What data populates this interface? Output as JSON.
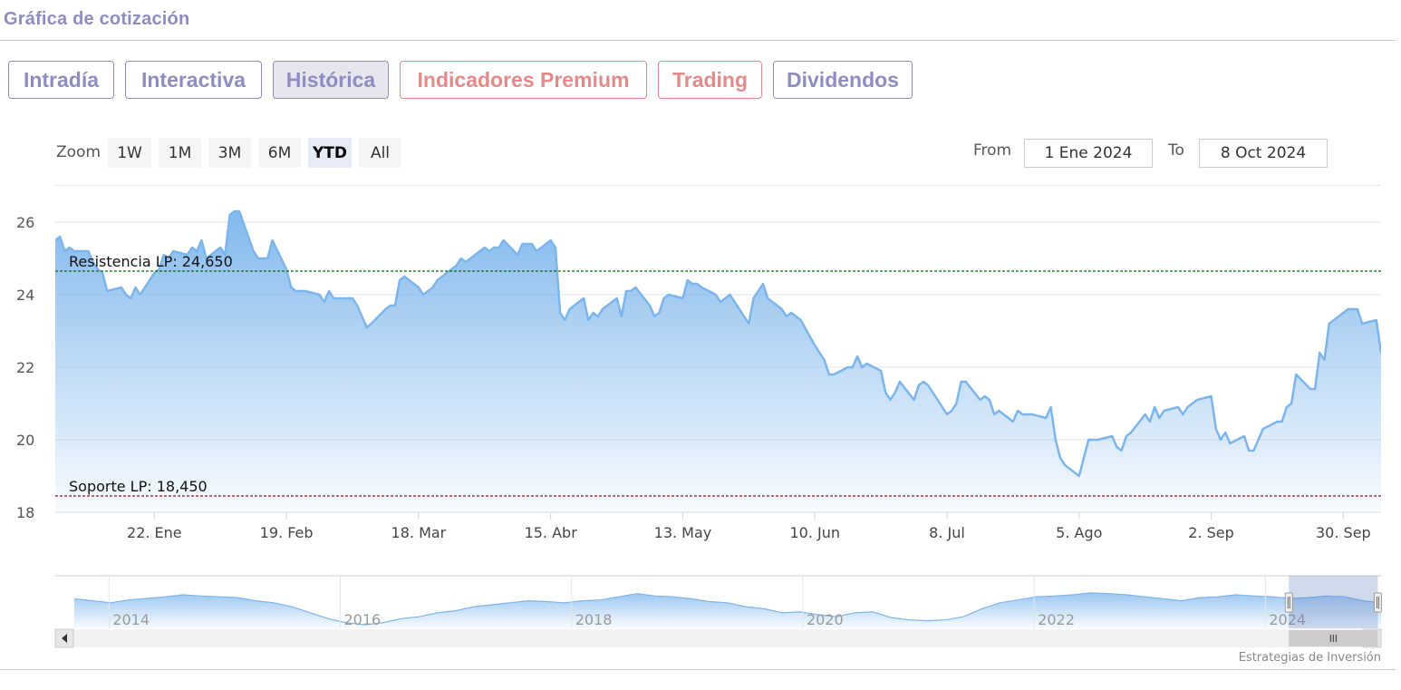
{
  "title": "Gráfica de cotización",
  "tabs": [
    {
      "label": "Intradía"
    },
    {
      "label": "Interactiva"
    },
    {
      "label": "Histórica"
    },
    {
      "label": "Indicadores Premium"
    },
    {
      "label": "Trading"
    },
    {
      "label": "Dividendos"
    }
  ],
  "zoom": {
    "label": "Zoom",
    "buttons": [
      "1W",
      "1M",
      "3M",
      "6M",
      "YTD",
      "All"
    ],
    "active": "YTD"
  },
  "range": {
    "from_label": "From",
    "from_value": "1 Ene 2024",
    "to_label": "To",
    "to_value": "8 Oct 2024"
  },
  "colors": {
    "accent": "#8f8cc2",
    "premium": "#e38b8b",
    "series_line": "#7cb5ec",
    "resistance": "#0a6a0a",
    "support": "#8b1a1a"
  },
  "chart_data": {
    "type": "area",
    "ylim": [
      18,
      27
    ],
    "y_ticks": [
      "18",
      "20",
      "22",
      "24",
      "26"
    ],
    "x_ticks": [
      "22. Ene",
      "19. Feb",
      "18. Mar",
      "15. Abr",
      "13. May",
      "10. Jun",
      "8. Jul",
      "5. Ago",
      "2. Sep",
      "30. Sep"
    ],
    "x_start": "2024-01-01",
    "x_end": "2024-10-08",
    "grid": true,
    "series": [
      {
        "values": [
          [
            "2024-01-01",
            25.5
          ],
          [
            "2024-01-02",
            25.6
          ],
          [
            "2024-01-03",
            25.2
          ],
          [
            "2024-01-04",
            25.3
          ],
          [
            "2024-01-05",
            25.2
          ],
          [
            "2024-01-08",
            25.2
          ],
          [
            "2024-01-09",
            24.9
          ],
          [
            "2024-01-10",
            24.7
          ],
          [
            "2024-01-11",
            24.6
          ],
          [
            "2024-01-12",
            24.1
          ],
          [
            "2024-01-15",
            24.2
          ],
          [
            "2024-01-16",
            24.0
          ],
          [
            "2024-01-17",
            23.9
          ],
          [
            "2024-01-18",
            24.2
          ],
          [
            "2024-01-19",
            24.0
          ],
          [
            "2024-01-22",
            24.6
          ],
          [
            "2024-01-23",
            24.7
          ],
          [
            "2024-01-24",
            25.1
          ],
          [
            "2024-01-25",
            25.0
          ],
          [
            "2024-01-26",
            25.2
          ],
          [
            "2024-01-29",
            25.1
          ],
          [
            "2024-01-30",
            25.3
          ],
          [
            "2024-01-31",
            25.2
          ],
          [
            "2024-02-01",
            25.5
          ],
          [
            "2024-02-02",
            25.0
          ],
          [
            "2024-02-05",
            25.3
          ],
          [
            "2024-02-06",
            25.1
          ],
          [
            "2024-02-07",
            26.2
          ],
          [
            "2024-02-08",
            26.3
          ],
          [
            "2024-02-09",
            26.3
          ],
          [
            "2024-02-12",
            25.2
          ],
          [
            "2024-02-13",
            25.0
          ],
          [
            "2024-02-14",
            25.0
          ],
          [
            "2024-02-15",
            25.0
          ],
          [
            "2024-02-16",
            25.5
          ],
          [
            "2024-02-19",
            24.7
          ],
          [
            "2024-02-20",
            24.2
          ],
          [
            "2024-02-21",
            24.1
          ],
          [
            "2024-02-22",
            24.1
          ],
          [
            "2024-02-23",
            24.1
          ],
          [
            "2024-02-26",
            24.0
          ],
          [
            "2024-02-27",
            23.8
          ],
          [
            "2024-02-28",
            24.1
          ],
          [
            "2024-02-29",
            23.9
          ],
          [
            "2024-03-01",
            23.9
          ],
          [
            "2024-03-04",
            23.9
          ],
          [
            "2024-03-05",
            23.7
          ],
          [
            "2024-03-06",
            23.4
          ],
          [
            "2024-03-07",
            23.1
          ],
          [
            "2024-03-08",
            23.2
          ],
          [
            "2024-03-11",
            23.6
          ],
          [
            "2024-03-12",
            23.7
          ],
          [
            "2024-03-13",
            23.7
          ],
          [
            "2024-03-14",
            24.4
          ],
          [
            "2024-03-15",
            24.5
          ],
          [
            "2024-03-18",
            24.2
          ],
          [
            "2024-03-19",
            24.0
          ],
          [
            "2024-03-20",
            24.1
          ],
          [
            "2024-03-21",
            24.2
          ],
          [
            "2024-03-22",
            24.4
          ],
          [
            "2024-03-25",
            24.7
          ],
          [
            "2024-03-26",
            24.8
          ],
          [
            "2024-03-27",
            25.0
          ],
          [
            "2024-03-28",
            24.9
          ],
          [
            "2024-04-01",
            25.3
          ],
          [
            "2024-04-02",
            25.2
          ],
          [
            "2024-04-03",
            25.3
          ],
          [
            "2024-04-04",
            25.3
          ],
          [
            "2024-04-05",
            25.5
          ],
          [
            "2024-04-08",
            25.1
          ],
          [
            "2024-04-09",
            25.4
          ],
          [
            "2024-04-10",
            25.4
          ],
          [
            "2024-04-11",
            25.4
          ],
          [
            "2024-04-12",
            25.2
          ],
          [
            "2024-04-15",
            25.5
          ],
          [
            "2024-04-16",
            25.3
          ],
          [
            "2024-04-17",
            23.5
          ],
          [
            "2024-04-18",
            23.3
          ],
          [
            "2024-04-19",
            23.6
          ],
          [
            "2024-04-22",
            23.9
          ],
          [
            "2024-04-23",
            23.3
          ],
          [
            "2024-04-24",
            23.5
          ],
          [
            "2024-04-25",
            23.4
          ],
          [
            "2024-04-26",
            23.6
          ],
          [
            "2024-04-29",
            23.9
          ],
          [
            "2024-04-30",
            23.4
          ],
          [
            "2024-05-01",
            24.1
          ],
          [
            "2024-05-02",
            24.1
          ],
          [
            "2024-05-03",
            24.2
          ],
          [
            "2024-05-06",
            23.7
          ],
          [
            "2024-05-07",
            23.4
          ],
          [
            "2024-05-08",
            23.5
          ],
          [
            "2024-05-09",
            23.9
          ],
          [
            "2024-05-10",
            24.0
          ],
          [
            "2024-05-13",
            23.9
          ],
          [
            "2024-05-14",
            24.4
          ],
          [
            "2024-05-15",
            24.3
          ],
          [
            "2024-05-16",
            24.3
          ],
          [
            "2024-05-17",
            24.2
          ],
          [
            "2024-05-20",
            24.0
          ],
          [
            "2024-05-21",
            23.8
          ],
          [
            "2024-05-22",
            23.9
          ],
          [
            "2024-05-23",
            24.0
          ],
          [
            "2024-05-24",
            23.8
          ],
          [
            "2024-05-27",
            23.2
          ],
          [
            "2024-05-28",
            23.9
          ],
          [
            "2024-05-29",
            24.1
          ],
          [
            "2024-05-30",
            24.3
          ],
          [
            "2024-05-31",
            23.9
          ],
          [
            "2024-06-03",
            23.6
          ],
          [
            "2024-06-04",
            23.4
          ],
          [
            "2024-06-05",
            23.5
          ],
          [
            "2024-06-06",
            23.4
          ],
          [
            "2024-06-07",
            23.3
          ],
          [
            "2024-06-10",
            22.6
          ],
          [
            "2024-06-11",
            22.4
          ],
          [
            "2024-06-12",
            22.2
          ],
          [
            "2024-06-13",
            21.8
          ],
          [
            "2024-06-14",
            21.8
          ],
          [
            "2024-06-17",
            22.0
          ],
          [
            "2024-06-18",
            22.0
          ],
          [
            "2024-06-19",
            22.3
          ],
          [
            "2024-06-20",
            22.0
          ],
          [
            "2024-06-21",
            22.1
          ],
          [
            "2024-06-24",
            21.9
          ],
          [
            "2024-06-25",
            21.3
          ],
          [
            "2024-06-26",
            21.1
          ],
          [
            "2024-06-27",
            21.3
          ],
          [
            "2024-06-28",
            21.6
          ],
          [
            "2024-07-01",
            21.1
          ],
          [
            "2024-07-02",
            21.5
          ],
          [
            "2024-07-03",
            21.6
          ],
          [
            "2024-07-04",
            21.5
          ],
          [
            "2024-07-05",
            21.3
          ],
          [
            "2024-07-08",
            20.7
          ],
          [
            "2024-07-09",
            20.8
          ],
          [
            "2024-07-10",
            21.0
          ],
          [
            "2024-07-11",
            21.6
          ],
          [
            "2024-07-12",
            21.6
          ],
          [
            "2024-07-15",
            21.1
          ],
          [
            "2024-07-16",
            21.2
          ],
          [
            "2024-07-17",
            21.1
          ],
          [
            "2024-07-18",
            20.7
          ],
          [
            "2024-07-19",
            20.8
          ],
          [
            "2024-07-22",
            20.5
          ],
          [
            "2024-07-23",
            20.8
          ],
          [
            "2024-07-24",
            20.7
          ],
          [
            "2024-07-25",
            20.7
          ],
          [
            "2024-07-26",
            20.7
          ],
          [
            "2024-07-29",
            20.6
          ],
          [
            "2024-07-30",
            20.9
          ],
          [
            "2024-07-31",
            20.0
          ],
          [
            "2024-08-01",
            19.5
          ],
          [
            "2024-08-02",
            19.3
          ],
          [
            "2024-08-05",
            19.0
          ],
          [
            "2024-08-06",
            19.5
          ],
          [
            "2024-08-07",
            20.0
          ],
          [
            "2024-08-08",
            20.0
          ],
          [
            "2024-08-09",
            20.0
          ],
          [
            "2024-08-12",
            20.1
          ],
          [
            "2024-08-13",
            19.8
          ],
          [
            "2024-08-14",
            19.7
          ],
          [
            "2024-08-15",
            20.1
          ],
          [
            "2024-08-16",
            20.2
          ],
          [
            "2024-08-19",
            20.7
          ],
          [
            "2024-08-20",
            20.5
          ],
          [
            "2024-08-21",
            20.9
          ],
          [
            "2024-08-22",
            20.6
          ],
          [
            "2024-08-23",
            20.8
          ],
          [
            "2024-08-26",
            20.9
          ],
          [
            "2024-08-27",
            20.7
          ],
          [
            "2024-08-28",
            20.9
          ],
          [
            "2024-08-29",
            21.0
          ],
          [
            "2024-08-30",
            21.1
          ],
          [
            "2024-09-02",
            21.2
          ],
          [
            "2024-09-03",
            20.3
          ],
          [
            "2024-09-04",
            20.0
          ],
          [
            "2024-09-05",
            20.2
          ],
          [
            "2024-09-06",
            19.9
          ],
          [
            "2024-09-09",
            20.1
          ],
          [
            "2024-09-10",
            19.7
          ],
          [
            "2024-09-11",
            19.7
          ],
          [
            "2024-09-12",
            20.0
          ],
          [
            "2024-09-13",
            20.3
          ],
          [
            "2024-09-16",
            20.5
          ],
          [
            "2024-09-17",
            20.5
          ],
          [
            "2024-09-18",
            20.9
          ],
          [
            "2024-09-19",
            21.0
          ],
          [
            "2024-09-20",
            21.8
          ],
          [
            "2024-09-23",
            21.4
          ],
          [
            "2024-09-24",
            21.4
          ],
          [
            "2024-09-25",
            22.4
          ],
          [
            "2024-09-26",
            22.2
          ],
          [
            "2024-09-27",
            23.2
          ],
          [
            "2024-09-30",
            23.5
          ],
          [
            "2024-10-01",
            23.6
          ],
          [
            "2024-10-02",
            23.6
          ],
          [
            "2024-10-03",
            23.6
          ],
          [
            "2024-10-04",
            23.2
          ],
          [
            "2024-10-07",
            23.3
          ],
          [
            "2024-10-08",
            22.4
          ]
        ]
      }
    ],
    "plot_lines": [
      {
        "label": "Resistencia LP: 24,650",
        "value": 24.65,
        "color": "#0a6a0a"
      },
      {
        "label": "Soporte LP: 18,450",
        "value": 18.45,
        "color": "#8b1a1a"
      }
    ],
    "navigator": {
      "x_ticks": [
        "2014",
        "2016",
        "2018",
        "2020",
        "2022",
        "2024"
      ],
      "profile": [
        0.65,
        0.6,
        0.55,
        0.62,
        0.66,
        0.7,
        0.75,
        0.72,
        0.7,
        0.68,
        0.6,
        0.55,
        0.45,
        0.3,
        0.15,
        0.05,
        0.0,
        0.05,
        0.15,
        0.2,
        0.3,
        0.35,
        0.45,
        0.5,
        0.55,
        0.6,
        0.58,
        0.55,
        0.6,
        0.62,
        0.7,
        0.78,
        0.72,
        0.7,
        0.65,
        0.58,
        0.55,
        0.45,
        0.4,
        0.3,
        0.32,
        0.25,
        0.2,
        0.3,
        0.32,
        0.18,
        0.12,
        0.1,
        0.12,
        0.2,
        0.4,
        0.55,
        0.62,
        0.7,
        0.72,
        0.75,
        0.8,
        0.78,
        0.75,
        0.7,
        0.65,
        0.6,
        0.68,
        0.7,
        0.75,
        0.72,
        0.7,
        0.66,
        0.68,
        0.72,
        0.7,
        0.6,
        0.55
      ],
      "selection": [
        "2024-01-01",
        "2024-10-08"
      ]
    }
  },
  "credits": "Estrategias de Inversión"
}
